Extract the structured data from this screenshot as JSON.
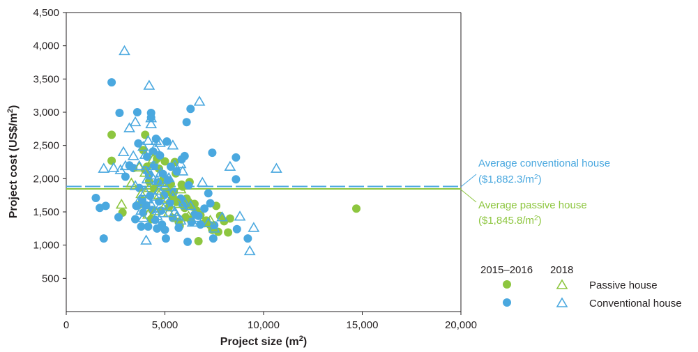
{
  "colors": {
    "passive": "#8dc63f",
    "conventional": "#4aa8df",
    "axis": "#231f20"
  },
  "chart_data": {
    "type": "scatter",
    "xlabel_main": "Project size (m",
    "xlabel_sup": "2",
    "xlabel_close": ")",
    "ylabel_main": "Project cost (US$/m",
    "ylabel_sup": "2",
    "ylabel_close": ")",
    "xlim": [
      0,
      20000
    ],
    "ylim": [
      0,
      4500
    ],
    "xticks": [
      0,
      5000,
      10000,
      15000,
      20000
    ],
    "xtick_labels": [
      "0",
      "5,000",
      "10,000",
      "15,000",
      "20,000"
    ],
    "yticks": [
      500,
      1000,
      1500,
      2000,
      2500,
      3000,
      3500,
      4000,
      4500
    ],
    "ytick_labels": [
      "500",
      "1,000",
      "1,500",
      "2,000",
      "2,500",
      "3,000",
      "3,500",
      "4,000",
      "4,500"
    ],
    "averages": [
      {
        "value": 1882.3,
        "style": "dashed",
        "color_key": "conventional",
        "label": "Average conventional house",
        "value_label": "($1,882.3/m",
        "value_sup": "2",
        "value_close": ")"
      },
      {
        "value": 1845.8,
        "style": "solid",
        "color_key": "passive",
        "label": "Average passive house",
        "value_label": "($1,845.8/m",
        "value_sup": "2",
        "value_close": ")"
      }
    ],
    "legend": {
      "col1": "2015–2016",
      "col2": "2018",
      "rows": [
        {
          "label": "Passive house",
          "color_key": "passive"
        },
        {
          "label": "Conventional house",
          "color_key": "conventional"
        }
      ]
    },
    "series": [
      {
        "name": "Passive house 2015–2016",
        "marker": "circle",
        "color_key": "passive",
        "points": [
          [
            2300,
            2660
          ],
          [
            2300,
            2270
          ],
          [
            2850,
            1490
          ],
          [
            3650,
            1600
          ],
          [
            3900,
            2430
          ],
          [
            4000,
            2660
          ],
          [
            4100,
            2180
          ],
          [
            4200,
            1960
          ],
          [
            4300,
            1390
          ],
          [
            4450,
            1850
          ],
          [
            4600,
            2300
          ],
          [
            4700,
            2150
          ],
          [
            4900,
            1980
          ],
          [
            5000,
            2260
          ],
          [
            5100,
            1800
          ],
          [
            5200,
            1570
          ],
          [
            5300,
            1920
          ],
          [
            5400,
            1730
          ],
          [
            5500,
            2250
          ],
          [
            5550,
            2080
          ],
          [
            5600,
            1650
          ],
          [
            5700,
            1350
          ],
          [
            5750,
            1290
          ],
          [
            5850,
            1910
          ],
          [
            5900,
            1880
          ],
          [
            6000,
            1560
          ],
          [
            6050,
            1420
          ],
          [
            6100,
            1700
          ],
          [
            6200,
            1650
          ],
          [
            6250,
            1950
          ],
          [
            6300,
            1380
          ],
          [
            6400,
            1580
          ],
          [
            6500,
            1620
          ],
          [
            6600,
            1520
          ],
          [
            6700,
            1060
          ],
          [
            6800,
            1450
          ],
          [
            7000,
            1330
          ],
          [
            7100,
            1370
          ],
          [
            7300,
            1300
          ],
          [
            7400,
            1230
          ],
          [
            7600,
            1590
          ],
          [
            7700,
            1200
          ],
          [
            7800,
            1440
          ],
          [
            8000,
            1360
          ],
          [
            8200,
            1190
          ],
          [
            8300,
            1400
          ],
          [
            14700,
            1550
          ]
        ]
      },
      {
        "name": "Conventional house 2015–2016",
        "marker": "circle",
        "color_key": "conventional",
        "points": [
          [
            1500,
            1710
          ],
          [
            1700,
            1560
          ],
          [
            1900,
            1100
          ],
          [
            2000,
            1590
          ],
          [
            2300,
            3450
          ],
          [
            2650,
            1420
          ],
          [
            2700,
            2990
          ],
          [
            3000,
            2030
          ],
          [
            3200,
            2200
          ],
          [
            3400,
            2160
          ],
          [
            3500,
            1390
          ],
          [
            3550,
            1590
          ],
          [
            3600,
            3000
          ],
          [
            3650,
            2530
          ],
          [
            3700,
            1860
          ],
          [
            3800,
            1280
          ],
          [
            3850,
            1680
          ],
          [
            3900,
            1490
          ],
          [
            4000,
            2130
          ],
          [
            4050,
            1600
          ],
          [
            4100,
            2330
          ],
          [
            4150,
            1280
          ],
          [
            4200,
            2060
          ],
          [
            4250,
            1740
          ],
          [
            4300,
            2990
          ],
          [
            4300,
            2920
          ],
          [
            4350,
            1530
          ],
          [
            4400,
            2410
          ],
          [
            4450,
            2200
          ],
          [
            4500,
            1380
          ],
          [
            4550,
            2600
          ],
          [
            4600,
            1250
          ],
          [
            4650,
            1940
          ],
          [
            4700,
            1660
          ],
          [
            4750,
            2350
          ],
          [
            4800,
            1520
          ],
          [
            4850,
            1310
          ],
          [
            4900,
            2070
          ],
          [
            4950,
            1750
          ],
          [
            5000,
            1230
          ],
          [
            5050,
            1100
          ],
          [
            5100,
            2560
          ],
          [
            5150,
            1980
          ],
          [
            5250,
            1640
          ],
          [
            5300,
            2180
          ],
          [
            5400,
            1410
          ],
          [
            5450,
            1800
          ],
          [
            5600,
            2110
          ],
          [
            5700,
            1260
          ],
          [
            5800,
            1700
          ],
          [
            5850,
            2290
          ],
          [
            5900,
            1600
          ],
          [
            6000,
            2340
          ],
          [
            6100,
            2850
          ],
          [
            6150,
            1050
          ],
          [
            6200,
            1900
          ],
          [
            6300,
            3050
          ],
          [
            6350,
            1350
          ],
          [
            6500,
            1460
          ],
          [
            6700,
            1440
          ],
          [
            6800,
            1310
          ],
          [
            7000,
            1550
          ],
          [
            7200,
            1780
          ],
          [
            7300,
            1630
          ],
          [
            7400,
            2390
          ],
          [
            7450,
            1100
          ],
          [
            7500,
            1300
          ],
          [
            8600,
            2320
          ],
          [
            8600,
            1990
          ],
          [
            8650,
            1240
          ],
          [
            9200,
            1100
          ]
        ]
      },
      {
        "name": "Passive house 2018",
        "marker": "triangle",
        "color_key": "passive",
        "points": [
          [
            2800,
            1620
          ],
          [
            3300,
            1940
          ],
          [
            3700,
            2180
          ],
          [
            3800,
            1780
          ],
          [
            4000,
            2100
          ],
          [
            4150,
            1470
          ],
          [
            4200,
            1870
          ],
          [
            4400,
            2300
          ],
          [
            4500,
            1520
          ],
          [
            4700,
            1760
          ],
          [
            4800,
            1960
          ],
          [
            5000,
            1600
          ],
          [
            5200,
            1500
          ],
          [
            5400,
            1750
          ],
          [
            5600,
            1430
          ],
          [
            5700,
            1630
          ],
          [
            5800,
            1850
          ],
          [
            6200,
            1440
          ],
          [
            7300,
            1380
          ]
        ]
      },
      {
        "name": "Conventional house 2018",
        "marker": "triangle",
        "color_key": "conventional",
        "points": [
          [
            2950,
            3930
          ],
          [
            4200,
            3410
          ],
          [
            6750,
            3170
          ],
          [
            3200,
            2770
          ],
          [
            3500,
            2860
          ],
          [
            4300,
            2830
          ],
          [
            4300,
            2920
          ],
          [
            4150,
            2580
          ],
          [
            4550,
            2580
          ],
          [
            4750,
            2550
          ],
          [
            5400,
            2510
          ],
          [
            1900,
            2160
          ],
          [
            2400,
            2170
          ],
          [
            2750,
            2140
          ],
          [
            2900,
            2410
          ],
          [
            3000,
            2200
          ],
          [
            3400,
            2350
          ],
          [
            3700,
            2200
          ],
          [
            3900,
            2490
          ],
          [
            4000,
            2370
          ],
          [
            4100,
            2000
          ],
          [
            4300,
            2060
          ],
          [
            4400,
            2200
          ],
          [
            4500,
            2470
          ],
          [
            4600,
            1980
          ],
          [
            4800,
            2100
          ],
          [
            5000,
            1890
          ],
          [
            5200,
            2020
          ],
          [
            5500,
            2210
          ],
          [
            5800,
            2230
          ],
          [
            5900,
            2120
          ],
          [
            3500,
            1900
          ],
          [
            3700,
            1680
          ],
          [
            3800,
            1530
          ],
          [
            3900,
            1420
          ],
          [
            4000,
            1810
          ],
          [
            4100,
            1700
          ],
          [
            4300,
            1620
          ],
          [
            4500,
            1740
          ],
          [
            4600,
            1450
          ],
          [
            4700,
            1830
          ],
          [
            4800,
            1620
          ],
          [
            4900,
            1490
          ],
          [
            5100,
            1690
          ],
          [
            5300,
            1580
          ],
          [
            5500,
            1510
          ],
          [
            5600,
            1440
          ],
          [
            5800,
            1380
          ],
          [
            6000,
            1650
          ],
          [
            6300,
            1600
          ],
          [
            6400,
            1350
          ],
          [
            6600,
            1420
          ],
          [
            6900,
            1950
          ],
          [
            7200,
            1340
          ],
          [
            7500,
            1260
          ],
          [
            7900,
            1430
          ],
          [
            8300,
            2190
          ],
          [
            8800,
            1440
          ],
          [
            10650,
            2160
          ],
          [
            9500,
            1270
          ],
          [
            9300,
            920
          ],
          [
            4050,
            1080
          ]
        ]
      }
    ]
  }
}
